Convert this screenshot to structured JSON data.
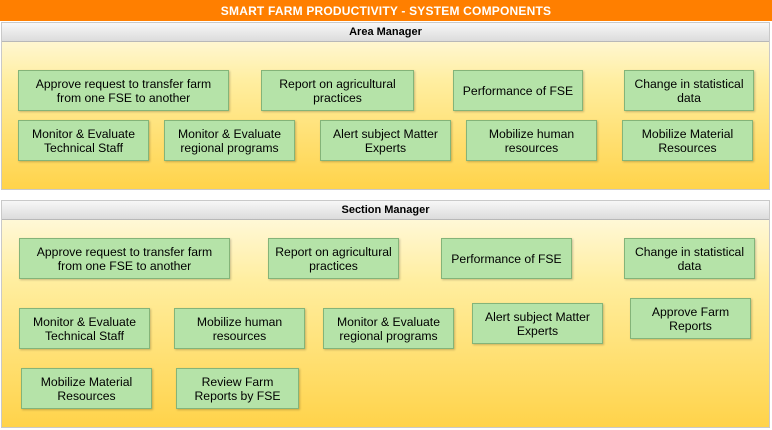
{
  "title": "SMART FARM PRODUCTIVITY - SYSTEM COMPONENTS",
  "area_manager": {
    "header": "Area Manager",
    "items": [
      "Approve request to transfer farm from one FSE to another",
      "Report on agricultural practices",
      "Performance of FSE",
      "Change in statistical data",
      "Monitor & Evaluate Technical Staff",
      "Monitor & Evaluate regional programs",
      "Alert subject Matter Experts",
      "Mobilize human resources",
      "Mobilize Material Resources"
    ]
  },
  "section_manager": {
    "header": "Section Manager",
    "items": [
      "Approve request to transfer farm from one FSE to another",
      "Report on agricultural practices",
      "Performance of FSE",
      "Change in statistical data",
      "Monitor & Evaluate Technical Staff",
      "Mobilize human resources",
      "Monitor & Evaluate regional programs",
      "Alert subject Matter Experts",
      "Approve Farm Reports",
      "Mobilize Material Resources",
      "Review Farm Reports by FSE"
    ]
  },
  "colors": {
    "title_bar": "#ff7f00",
    "box_fill": "#b5e3a8",
    "box_border": "#84b479"
  }
}
